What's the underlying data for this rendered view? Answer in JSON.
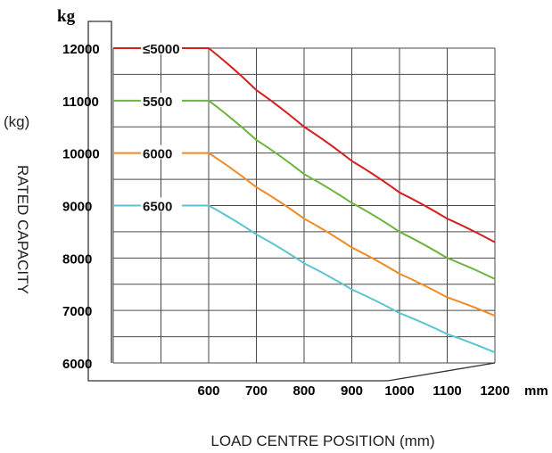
{
  "chart_data": {
    "type": "line",
    "unit_top": "kg",
    "unit_side": "(kg)",
    "ylabel": "RATED CAPACITY",
    "xlabel": "LOAD CENTRE POSITION (mm)",
    "x_unit": "mm",
    "xticks": [
      "600",
      "700",
      "800",
      "900",
      "1000",
      "1100",
      "1200"
    ],
    "yticks": [
      "12000",
      "11000",
      "10000",
      "9000",
      "8000",
      "7000",
      "6000"
    ],
    "xlim": [
      400,
      1200
    ],
    "ylim": [
      6000,
      12000
    ],
    "grid": true,
    "x": [
      400,
      500,
      600,
      700,
      800,
      900,
      1000,
      1100,
      1200
    ],
    "series": [
      {
        "name": "≤5000",
        "color": "#d62020",
        "values": [
          12000,
          12000,
          12000,
          11200,
          10500,
          9850,
          9250,
          8750,
          8300
        ]
      },
      {
        "name": "5500",
        "color": "#6cb33f",
        "values": [
          11000,
          11000,
          11000,
          10250,
          9600,
          9050,
          8500,
          8000,
          7600
        ]
      },
      {
        "name": "6000",
        "color": "#f08a24",
        "values": [
          10000,
          10000,
          10000,
          9350,
          8750,
          8200,
          7700,
          7250,
          6900
        ]
      },
      {
        "name": "6500",
        "color": "#5bc4d1",
        "values": [
          9000,
          9000,
          9000,
          8450,
          7900,
          7400,
          6950,
          6550,
          6200
        ]
      }
    ]
  }
}
